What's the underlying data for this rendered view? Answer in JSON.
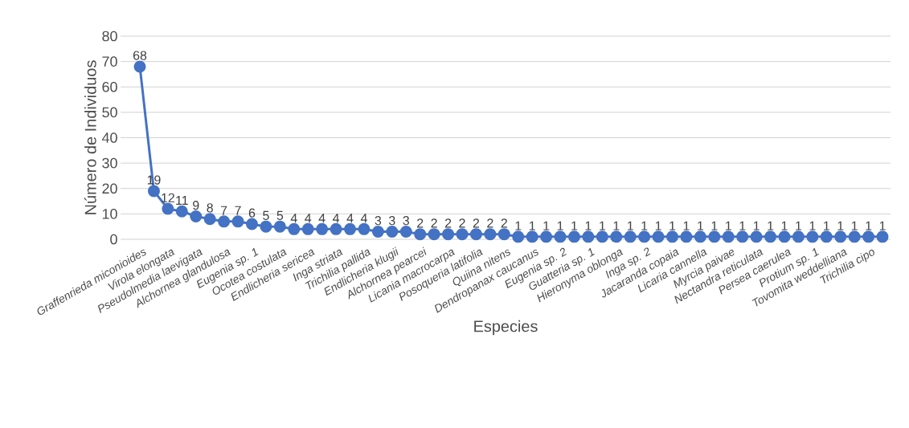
{
  "chart_data": {
    "type": "line",
    "xlabel": "Especies",
    "ylabel": "Número de Individuos",
    "categories": [
      "Graffenrieda miconioides",
      null,
      "Virola elongata",
      null,
      "Pseudolmedia laevigata",
      null,
      "Alchornea glandulosa",
      null,
      "Eugenia sp. 1",
      null,
      "Ocotea costulata",
      null,
      "Endlicheria sericea",
      null,
      "Inga striata",
      null,
      "Trichilia pallida",
      null,
      "Endlicheria klugii",
      null,
      "Alchornea pearcei",
      null,
      "Licania macrocarpa",
      null,
      "Posoqueria latifolia",
      null,
      "Quiina nitens",
      null,
      "Dendropanax caucanus",
      null,
      "Eugenia sp. 2",
      null,
      "Guatteria sp. 1",
      null,
      "Hieronyma oblonga",
      null,
      "Inga sp. 2",
      null,
      "Jacaranda copaia",
      null,
      "Licaria cannella",
      null,
      "Myrcia paivae",
      null,
      "Nectandra reticulata",
      null,
      "Persea caerulea",
      null,
      "Protium sp. 1",
      null,
      "Tovomita weddelliana",
      null,
      "Trichilia cipo",
      null
    ],
    "values": [
      68,
      19,
      12,
      11,
      9,
      8,
      7,
      7,
      6,
      5,
      5,
      4,
      4,
      4,
      4,
      4,
      4,
      3,
      3,
      3,
      2,
      2,
      2,
      2,
      2,
      2,
      2,
      1,
      1,
      1,
      1,
      1,
      1,
      1,
      1,
      1,
      1,
      1,
      1,
      1,
      1,
      1,
      1,
      1,
      1,
      1,
      1,
      1,
      1,
      1,
      1,
      1,
      1,
      1
    ],
    "color": "#4472c4",
    "marker": "circle",
    "line_style": "solid",
    "ylim": [
      0,
      80
    ],
    "yticks": [
      0,
      10,
      20,
      30,
      40,
      50,
      60,
      70,
      80
    ],
    "value_labels": [
      "68",
      "19",
      "12",
      "11",
      "9",
      "8",
      "7",
      "7",
      "6",
      "5",
      "5",
      "4",
      "4",
      "4",
      "4",
      "4",
      "4",
      "3",
      "3",
      "3",
      "2",
      "2",
      "2",
      "2",
      "2",
      "2",
      "2",
      "1",
      "1",
      "1",
      "1",
      "1",
      "1",
      "1",
      "1",
      "1",
      "1",
      "1",
      "1",
      "1",
      "1",
      "1",
      "1",
      "1",
      "1",
      "1",
      "1",
      "1",
      "1",
      "1",
      "1",
      "1",
      "1",
      "1"
    ],
    "grid": "y"
  }
}
